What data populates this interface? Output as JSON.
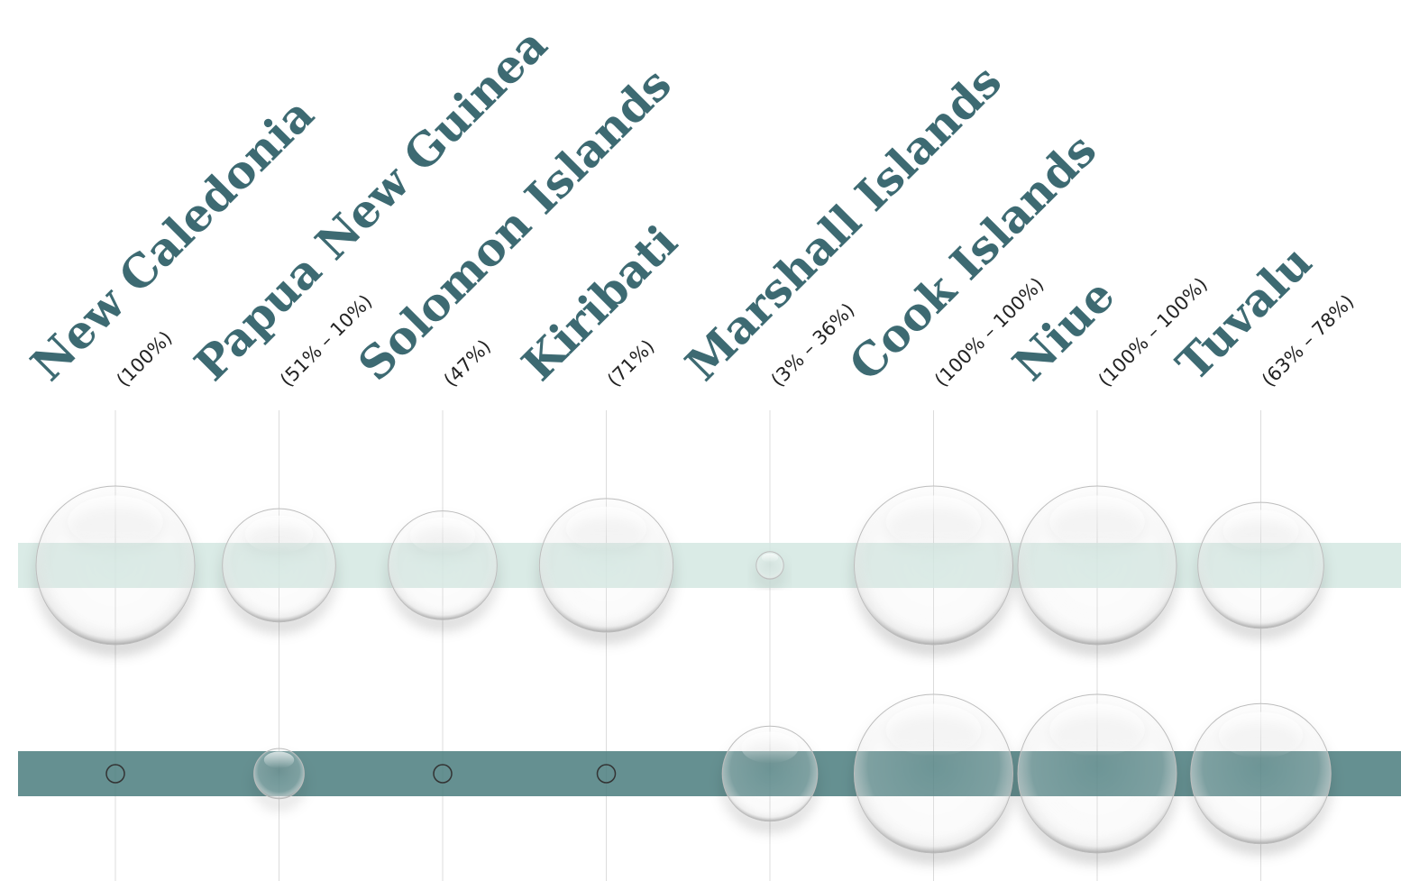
{
  "chart_data": {
    "type": "bubble",
    "categories": [
      "New Caledonia",
      "Papua New Guinea",
      "Solomon Islands",
      "Kiribati",
      "Marshall Islands",
      "Cook Islands",
      "Niue",
      "Tuvalu"
    ],
    "labels": [
      "(100%)",
      "(51% – 10%)",
      "(47%)",
      "(71%)",
      "(3% – 36%)",
      "(100% – 100%)",
      "(100% – 100%)",
      "(63% – 78%)"
    ],
    "series": [
      {
        "color": "#d3e7e2",
        "values": [
          100,
          51,
          47,
          71,
          3,
          100,
          100,
          63
        ]
      },
      {
        "color": "#4a7c7e",
        "values": [
          null,
          10,
          null,
          null,
          36,
          100,
          100,
          78
        ]
      }
    ]
  }
}
